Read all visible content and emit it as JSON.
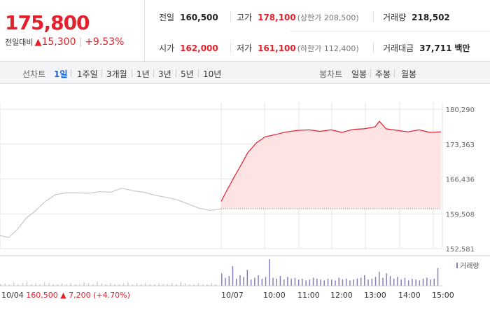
{
  "quote": {
    "price": "175,800",
    "change_label": "전일대비",
    "change_arrow": "▲",
    "change_amount": "15,300",
    "change_rate": "+9.53%"
  },
  "stats": {
    "prev_close_label": "전일",
    "prev_close": "160,500",
    "high_label": "고가",
    "high": "178,100",
    "upper_limit": "(상한가 208,500)",
    "volume_label": "거래량",
    "volume": "218,502",
    "open_label": "시가",
    "open": "162,000",
    "low_label": "저가",
    "low": "161,100",
    "lower_limit": "(하한가 112,400)",
    "value_label": "거래대금",
    "value": "37,711",
    "value_unit": "백만"
  },
  "tabs": {
    "line_label": "선차트",
    "line_periods": [
      "1일",
      "1주일",
      "3개월",
      "1년",
      "3년",
      "5년",
      "10년"
    ],
    "active_period": "1일",
    "candle_label": "봉차트",
    "candle_periods": [
      "일봉",
      "주봉",
      "월봉"
    ]
  },
  "colors": {
    "up": "#e4202c",
    "down": "#1c5fd1",
    "volume": "#8a7bb8",
    "prev_line": "#c8c8c8",
    "fill": "#fde3e4"
  },
  "chart_data": {
    "type": "line",
    "y_ticks": [
      "180,290",
      "173,363",
      "166,436",
      "159,508",
      "152,581"
    ],
    "ylim": [
      152581,
      180290
    ],
    "previous_close": 160500,
    "x_ticks": [
      "10/07",
      "10:00",
      "11:00",
      "12:00",
      "13:00",
      "14:00",
      "15:00"
    ],
    "prev_day_footer": {
      "date": "10/04",
      "close": "160,500",
      "arrow": "▲",
      "change": "7,200",
      "rate": "(+4.70%)"
    },
    "volume_label": "거래량",
    "series": [
      {
        "day": "10/04",
        "x": [
          0,
          0.04,
          0.08,
          0.12,
          0.16,
          0.2,
          0.25,
          0.3,
          0.35,
          0.4,
          0.45,
          0.5,
          0.55,
          0.6,
          0.65,
          0.7,
          0.75,
          0.8,
          0.85,
          0.9,
          0.95,
          1
        ],
        "values": [
          155200,
          154800,
          156500,
          158700,
          160100,
          161800,
          163300,
          163700,
          163700,
          163600,
          163900,
          163800,
          164600,
          164100,
          163800,
          163200,
          162800,
          162300,
          161500,
          160600,
          160200,
          160500
        ]
      },
      {
        "day": "10/07",
        "x": [
          0,
          0.03,
          0.06,
          0.09,
          0.12,
          0.16,
          0.2,
          0.25,
          0.3,
          0.35,
          0.4,
          0.45,
          0.5,
          0.55,
          0.6,
          0.65,
          0.7,
          0.72,
          0.75,
          0.8,
          0.85,
          0.9,
          0.95,
          1
        ],
        "values": [
          162000,
          164500,
          166900,
          169200,
          171600,
          173600,
          174800,
          175300,
          175800,
          176100,
          176200,
          175900,
          176200,
          175700,
          176300,
          176400,
          176800,
          177900,
          176400,
          176100,
          175800,
          176200,
          175700,
          175800
        ]
      }
    ],
    "volume_bars": [
      2,
      3,
      2,
      4,
      2,
      3,
      5,
      2,
      3,
      2,
      4,
      3,
      2,
      2,
      3,
      2,
      3,
      2,
      2,
      4,
      3,
      2,
      5,
      3,
      2,
      3,
      2,
      2,
      3,
      4,
      2,
      3,
      2,
      3,
      2,
      2,
      3,
      2,
      2,
      3,
      2,
      4,
      3,
      2,
      2,
      3,
      2,
      2,
      3,
      2,
      14,
      9,
      11,
      22,
      8,
      12,
      10,
      18,
      7,
      9,
      12,
      8,
      10,
      30,
      9,
      8,
      11,
      7,
      10,
      8,
      9,
      7,
      8,
      6,
      7,
      9,
      8,
      7,
      6,
      8,
      7,
      6,
      9,
      7,
      8,
      6,
      7,
      8,
      9,
      12,
      7,
      8,
      10,
      16,
      9,
      14,
      11,
      8,
      10,
      7,
      9,
      6,
      8,
      7,
      6,
      8,
      9,
      7,
      8,
      20
    ]
  }
}
